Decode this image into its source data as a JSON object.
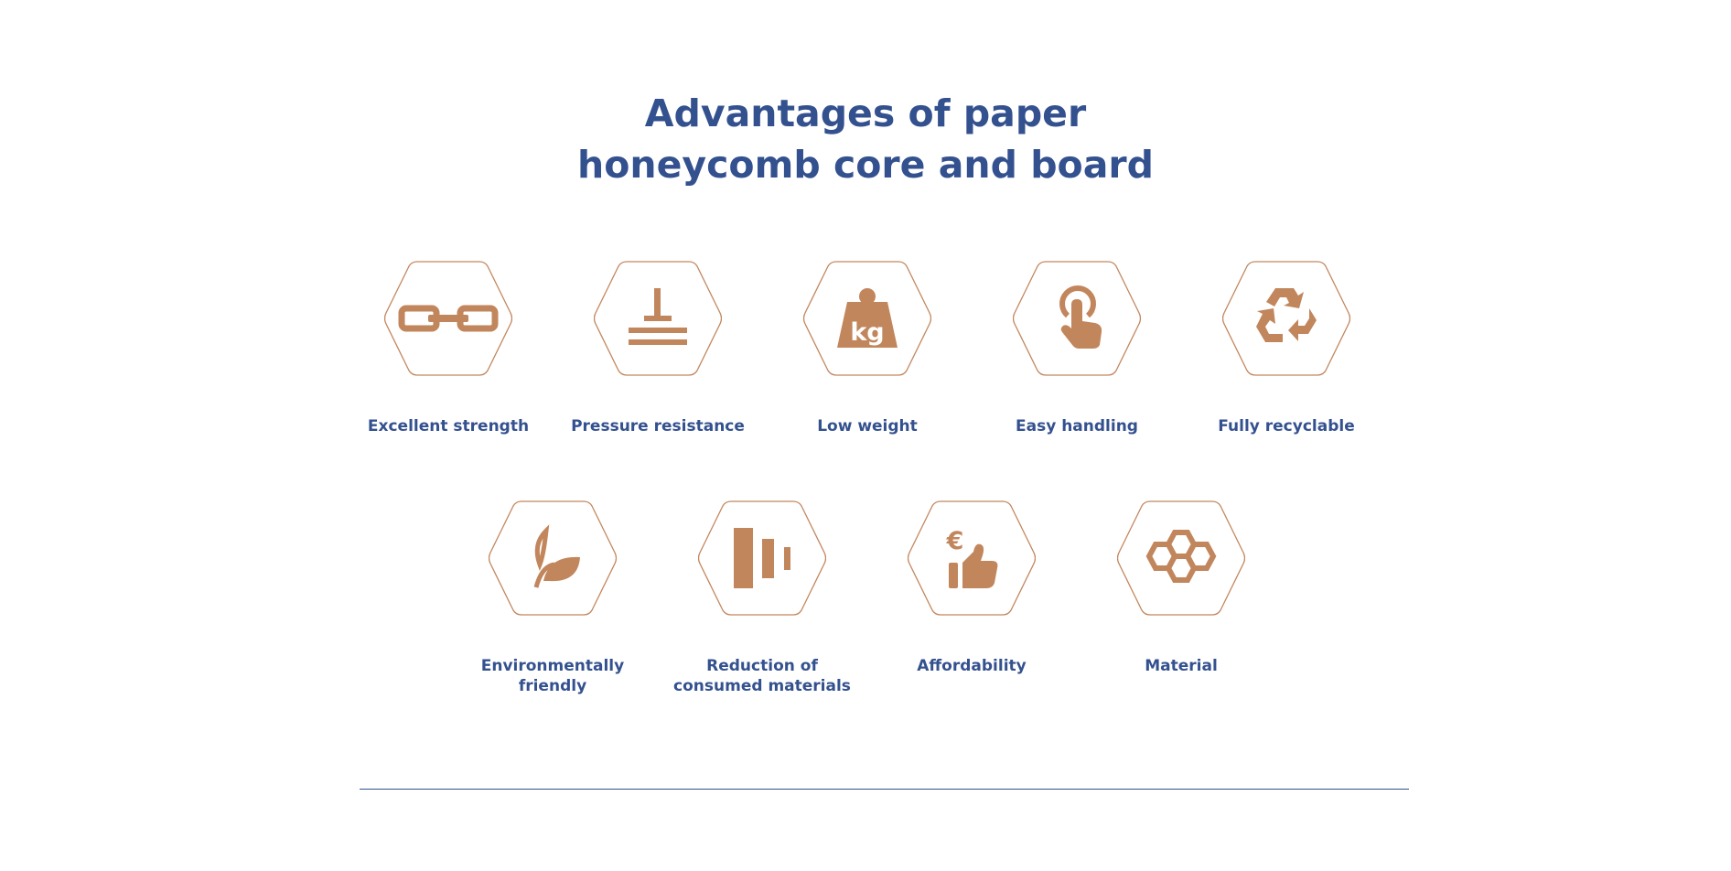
{
  "header": {
    "title_line1": "Advantages of paper",
    "title_line2": "honeycomb core and board"
  },
  "colors": {
    "accent": "#c2865d",
    "text": "#34518f",
    "background": "#ffffff"
  },
  "features": [
    {
      "label": "Excellent strength",
      "icon": "chain-link-icon"
    },
    {
      "label": "Pressure resistance",
      "icon": "pressure-icon"
    },
    {
      "label": "Low weight",
      "icon": "kg-weight-icon"
    },
    {
      "label": "Easy handling",
      "icon": "hand-pointer-icon"
    },
    {
      "label": "Fully recyclable",
      "icon": "recycle-icon"
    },
    {
      "label": "Environmentally\nfriendly",
      "icon": "leaf-icon"
    },
    {
      "label": "Reduction of\nconsumed materials",
      "icon": "reduction-bars-icon"
    },
    {
      "label": "Affordability",
      "icon": "euro-thumbs-up-icon"
    },
    {
      "label": "Material",
      "icon": "honeycomb-icon"
    }
  ],
  "weight_icon_text": "kg",
  "euro_symbol": "€"
}
